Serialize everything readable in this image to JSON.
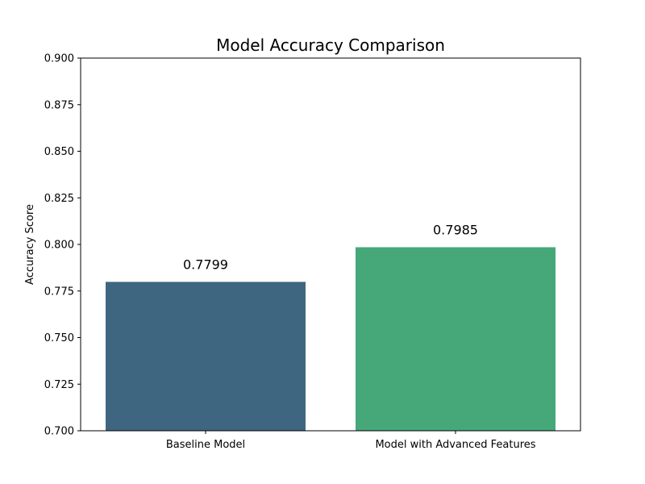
{
  "chart_data": {
    "type": "bar",
    "title": "Model Accuracy Comparison",
    "xlabel": "",
    "ylabel": "Accuracy Score",
    "categories": [
      "Baseline Model",
      "Model with Advanced Features"
    ],
    "values": [
      0.7799,
      0.7985
    ],
    "value_labels": [
      "0.7799",
      "0.7985"
    ],
    "ylim": [
      0.7,
      0.9
    ],
    "yticks": [
      0.7,
      0.725,
      0.75,
      0.775,
      0.8,
      0.825,
      0.85,
      0.875,
      0.9
    ],
    "ytick_labels": [
      "0.700",
      "0.725",
      "0.750",
      "0.775",
      "0.800",
      "0.825",
      "0.850",
      "0.875",
      "0.900"
    ],
    "colors": [
      "#3e6680",
      "#46a879"
    ],
    "grid": false,
    "legend": "none"
  }
}
